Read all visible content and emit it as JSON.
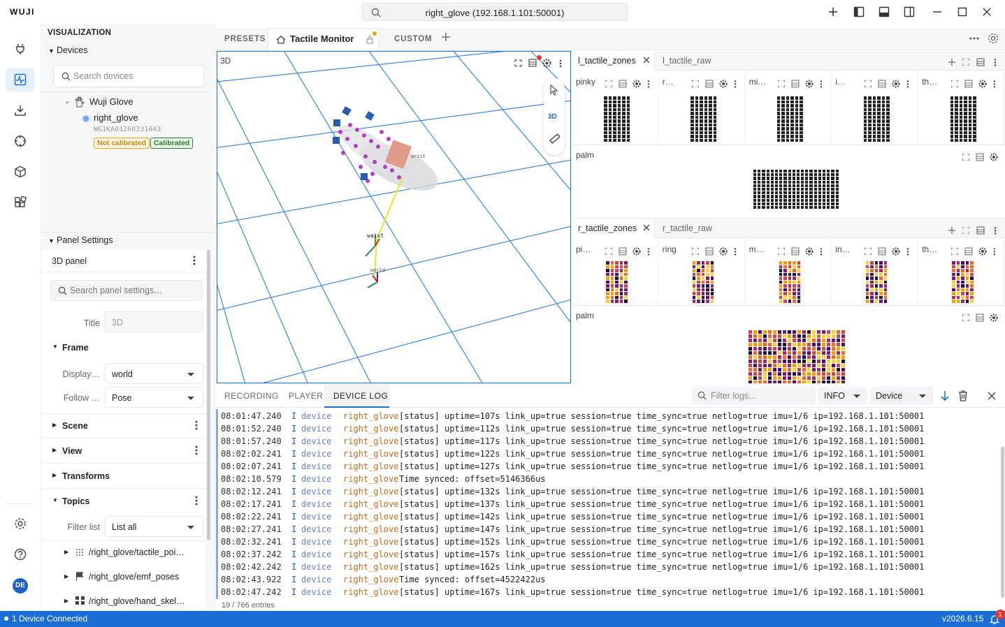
{
  "app": {
    "logo": "WUJI",
    "search_value": "right_glove (192.168.1.101:50001)"
  },
  "sidebar": {
    "title": "VISUALIZATION",
    "devices_header": "Devices",
    "search_placeholder": "Search devices",
    "device_group": "Wuji Glove",
    "device_name": "right_glove",
    "device_serial": "WG1KA01260331043",
    "badge_not_calibrated": "Not calibrated",
    "badge_calibrated": "Calibrated",
    "panel_settings_header": "Panel Settings",
    "panel_name": "3D panel",
    "settings_search_placeholder": "Search panel settings…",
    "title_label": "Title",
    "title_value": "3D",
    "frame_label": "Frame",
    "display_label": "Display…",
    "display_value": "world",
    "follow_label": "Follow …",
    "follow_value": "Pose",
    "scene_label": "Scene",
    "view_label": "View",
    "transforms_label": "Transforms",
    "topics_label": "Topics",
    "filter_list_label": "Filter list",
    "filter_list_value": "List all",
    "topics": [
      "/right_glove/tactile_poi…",
      "/right_glove/emf_poses",
      "/right_glove/hand_skel…"
    ]
  },
  "tabs": {
    "presets": "PRESETS",
    "tactile": "Tactile Monitor",
    "custom": "CUSTOM"
  },
  "panel3d": {
    "title": "3D",
    "mode_3d": "3D",
    "labels": [
      "wrist",
      "waist",
      "world"
    ]
  },
  "left_tactile": {
    "tab_zones": "l_tactile_zones",
    "tab_raw": "l_tactile_raw",
    "zones": [
      "pinky",
      "r…",
      "mi…",
      "i…",
      "th…"
    ],
    "palm": "palm"
  },
  "right_tactile": {
    "tab_zones": "r_tactile_zones",
    "tab_raw": "r_tactile_raw",
    "zones": [
      "pi…",
      "ring",
      "m…",
      "in…",
      "th…"
    ],
    "palm": "palm"
  },
  "log": {
    "tabs": [
      "RECORDING",
      "PLAYER",
      "DEVICE LOG"
    ],
    "filter_placeholder": "Filter logs...",
    "level": "INFO",
    "source": "Device",
    "lines": [
      {
        "ts": "08:01:47.240",
        "lv": "I",
        "src": "device",
        "dev": "right_glove",
        "msg": "[status] uptime=107s link_up=true session=true time_sync=true netlog=true imu=1/6 ip=192.168.1.101:50001"
      },
      {
        "ts": "08:01:52.240",
        "lv": "I",
        "src": "device",
        "dev": "right_glove",
        "msg": "[status] uptime=112s link_up=true session=true time_sync=true netlog=true imu=1/6 ip=192.168.1.101:50001"
      },
      {
        "ts": "08:01:57.240",
        "lv": "I",
        "src": "device",
        "dev": "right_glove",
        "msg": "[status] uptime=117s link_up=true session=true time_sync=true netlog=true imu=1/6 ip=192.168.1.101:50001"
      },
      {
        "ts": "08:02:02.241",
        "lv": "I",
        "src": "device",
        "dev": "right_glove",
        "msg": "[status] uptime=122s link_up=true session=true time_sync=true netlog=true imu=1/6 ip=192.168.1.101:50001"
      },
      {
        "ts": "08:02:07.241",
        "lv": "I",
        "src": "device",
        "dev": "right_glove",
        "msg": "[status] uptime=127s link_up=true session=true time_sync=true netlog=true imu=1/6 ip=192.168.1.101:50001"
      },
      {
        "ts": "08:02:10.579",
        "lv": "I",
        "src": "device",
        "dev": "right_glove",
        "msg": "Time synced: offset=5146366us"
      },
      {
        "ts": "08:02:12.241",
        "lv": "I",
        "src": "device",
        "dev": "right_glove",
        "msg": "[status] uptime=132s link_up=true session=true time_sync=true netlog=true imu=1/6 ip=192.168.1.101:50001"
      },
      {
        "ts": "08:02:17.241",
        "lv": "I",
        "src": "device",
        "dev": "right_glove",
        "msg": "[status] uptime=137s link_up=true session=true time_sync=true netlog=true imu=1/6 ip=192.168.1.101:50001"
      },
      {
        "ts": "08:02:22.241",
        "lv": "I",
        "src": "device",
        "dev": "right_glove",
        "msg": "[status] uptime=142s link_up=true session=true time_sync=true netlog=true imu=1/6 ip=192.168.1.101:50001"
      },
      {
        "ts": "08:02:27.241",
        "lv": "I",
        "src": "device",
        "dev": "right_glove",
        "msg": "[status] uptime=147s link_up=true session=true time_sync=true netlog=true imu=1/6 ip=192.168.1.101:50001"
      },
      {
        "ts": "08:02:32.241",
        "lv": "I",
        "src": "device",
        "dev": "right_glove",
        "msg": "[status] uptime=152s link_up=true session=true time_sync=true netlog=true imu=1/6 ip=192.168.1.101:50001"
      },
      {
        "ts": "08:02:37.242",
        "lv": "I",
        "src": "device",
        "dev": "right_glove",
        "msg": "[status] uptime=157s link_up=true session=true time_sync=true netlog=true imu=1/6 ip=192.168.1.101:50001"
      },
      {
        "ts": "08:02:42.242",
        "lv": "I",
        "src": "device",
        "dev": "right_glove",
        "msg": "[status] uptime=162s link_up=true session=true time_sync=true netlog=true imu=1/6 ip=192.168.1.101:50001"
      },
      {
        "ts": "08:02:43.922",
        "lv": "I",
        "src": "device",
        "dev": "right_glove",
        "msg": "Time synced: offset=4522422us"
      },
      {
        "ts": "08:02:47.242",
        "lv": "I",
        "src": "device",
        "dev": "right_glove",
        "msg": "[status] uptime=167s link_up=true session=true time_sync=true netlog=true imu=1/6 ip=192.168.1.101:50001"
      }
    ],
    "footer": "19 / 766 entries"
  },
  "status": {
    "connected": "1 Device Connected",
    "version": "v2026.6.15",
    "notif_count": "1"
  },
  "colors": {
    "accent": "#1b6ed3",
    "warn": "#e8a317",
    "ok": "#2e7d32",
    "device_name": "#c16b1c"
  }
}
